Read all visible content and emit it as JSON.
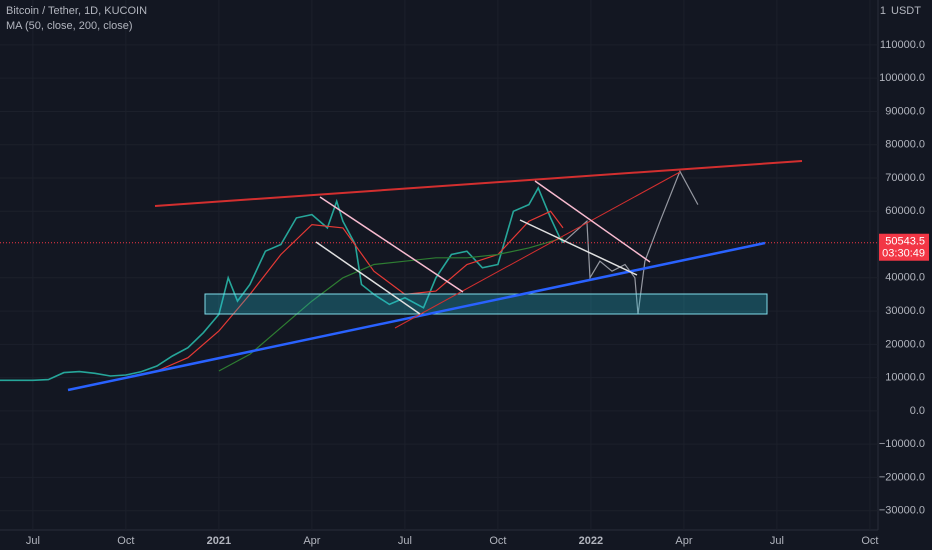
{
  "chart_data": {
    "type": "line",
    "title": "Bitcoin / Tether, 1D, KUCOIN",
    "indicator": "MA (50, close, 200, close)",
    "currency": "USDT",
    "scale_mode": "1",
    "last_price": 50543.5,
    "countdown": "03:30:49",
    "xlim": [
      -1.06,
      27.26
    ],
    "ylim": [
      -35800,
      123500
    ],
    "xticks": [
      {
        "value": 0,
        "label": "Jul"
      },
      {
        "value": 3,
        "label": "Oct"
      },
      {
        "value": 6,
        "label": "2021"
      },
      {
        "value": 9,
        "label": "Apr"
      },
      {
        "value": 12,
        "label": "Jul"
      },
      {
        "value": 15,
        "label": "Oct"
      },
      {
        "value": 18,
        "label": "2022"
      },
      {
        "value": 21,
        "label": "Apr"
      },
      {
        "value": 24,
        "label": "Jul"
      },
      {
        "value": 27,
        "label": "Oct"
      }
    ],
    "yticks": [
      {
        "value": 110000,
        "label": "110000.0"
      },
      {
        "value": 100000,
        "label": "100000.0"
      },
      {
        "value": 90000,
        "label": "90000.0"
      },
      {
        "value": 80000,
        "label": "80000.0"
      },
      {
        "value": 70000,
        "label": "70000.0"
      },
      {
        "value": 60000,
        "label": "60000.0"
      },
      {
        "value": 40000,
        "label": "40000.0"
      },
      {
        "value": 30000,
        "label": "30000.0"
      },
      {
        "value": 20000,
        "label": "20000.0"
      },
      {
        "value": 10000,
        "label": "10000.0"
      },
      {
        "value": 0,
        "label": "0.0"
      },
      {
        "value": -10000,
        "label": "−10000.0"
      },
      {
        "value": -20000,
        "label": "−20000.0"
      },
      {
        "value": -30000,
        "label": "−30000.0"
      }
    ],
    "grid": true,
    "series": [
      {
        "color": "#26a69a",
        "x": [
          -1.06,
          0,
          0.5,
          1,
          1.5,
          2,
          2.5,
          3,
          3.5,
          4,
          4.5,
          5,
          5.5,
          6,
          6.3,
          6.6,
          7,
          7.5,
          8,
          8.5,
          9,
          9.5,
          9.8,
          10,
          10.4,
          10.6,
          11,
          11.5,
          12,
          12.6,
          13,
          13.5,
          14,
          14.5,
          15,
          15.5,
          16,
          16.3,
          16.7,
          17,
          17.1
        ],
        "values": [
          9200,
          9200,
          9400,
          11500,
          11800,
          11300,
          10500,
          10800,
          11800,
          13500,
          16500,
          19000,
          23500,
          29000,
          40000,
          33000,
          38000,
          48000,
          50000,
          58000,
          59000,
          55000,
          63000,
          57000,
          50000,
          38000,
          35000,
          32000,
          34000,
          31000,
          40000,
          47000,
          48000,
          43000,
          44000,
          60000,
          62000,
          67000,
          58000,
          52000,
          50543.5
        ]
      },
      {
        "color": "#9598a1",
        "x": [
          17.1,
          17.87,
          17.97,
          18.29,
          18.68,
          19.1,
          19.42,
          19.52,
          19.74,
          20.23,
          20.87,
          21.45
        ],
        "values": [
          50543.5,
          57000,
          40000,
          45000,
          42000,
          44000,
          40000,
          29000,
          45000,
          57000,
          72000,
          62000
        ]
      },
      {
        "color": "#e53935",
        "x": [
          4,
          5,
          6,
          7,
          8,
          9,
          10,
          11,
          12,
          13,
          14,
          15,
          16,
          16.7,
          17.1
        ],
        "values": [
          12000,
          16000,
          24000,
          35000,
          47000,
          56000,
          55000,
          42000,
          35000,
          36000,
          44000,
          47000,
          57000,
          60000,
          55000
        ]
      },
      {
        "color": "#2e7d32",
        "x": [
          6,
          7,
          8,
          9,
          10,
          11,
          12,
          13,
          14,
          15,
          16,
          17.1
        ],
        "values": [
          12000,
          17000,
          25000,
          33000,
          40000,
          44000,
          45000,
          46000,
          46000,
          47000,
          49000,
          52000
        ]
      }
    ]
  }
}
